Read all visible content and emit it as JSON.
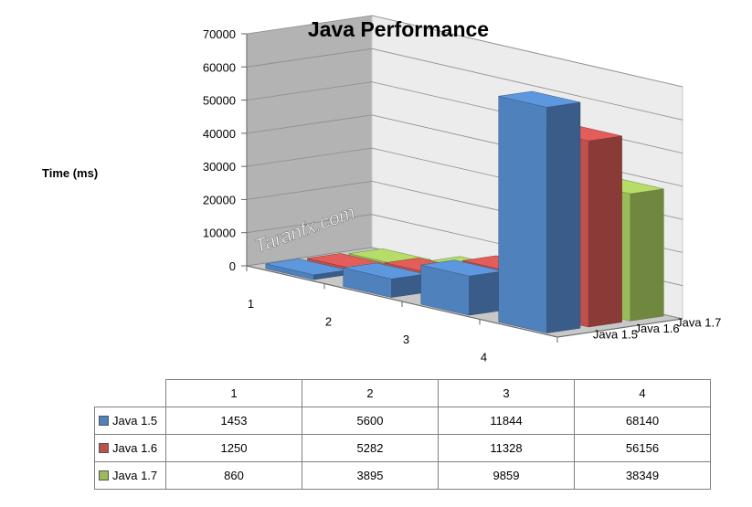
{
  "chart_data": {
    "type": "bar",
    "subtype": "3d-clustered-column",
    "title": "Java Performance",
    "ylabel": "Time (ms)",
    "categories": [
      "1",
      "2",
      "3",
      "4"
    ],
    "ylim": [
      0,
      70000
    ],
    "yticks": [
      "0",
      "10000",
      "20000",
      "30000",
      "40000",
      "50000",
      "60000",
      "70000"
    ],
    "series": [
      {
        "name": "Java 1.5",
        "color": "#4f81bd",
        "values": [
          1453,
          5600,
          11844,
          68140
        ]
      },
      {
        "name": "Java 1.6",
        "color": "#c0504d",
        "values": [
          1250,
          5282,
          11328,
          56156
        ]
      },
      {
        "name": "Java 1.7",
        "color": "#9bbb59",
        "values": [
          860,
          3895,
          9859,
          38349
        ]
      }
    ],
    "legend": "depth-axis labels",
    "grid": true,
    "watermark": "Taranfx.com"
  },
  "table": {
    "headers": [
      "1",
      "2",
      "3",
      "4"
    ],
    "rows": [
      {
        "label": "Java 1.5",
        "cells": [
          "1453",
          "5600",
          "11844",
          "68140"
        ]
      },
      {
        "label": "Java 1.6",
        "cells": [
          "1250",
          "5282",
          "11328",
          "56156"
        ]
      },
      {
        "label": "Java 1.7",
        "cells": [
          "860",
          "3895",
          "9859",
          "38349"
        ]
      }
    ]
  }
}
